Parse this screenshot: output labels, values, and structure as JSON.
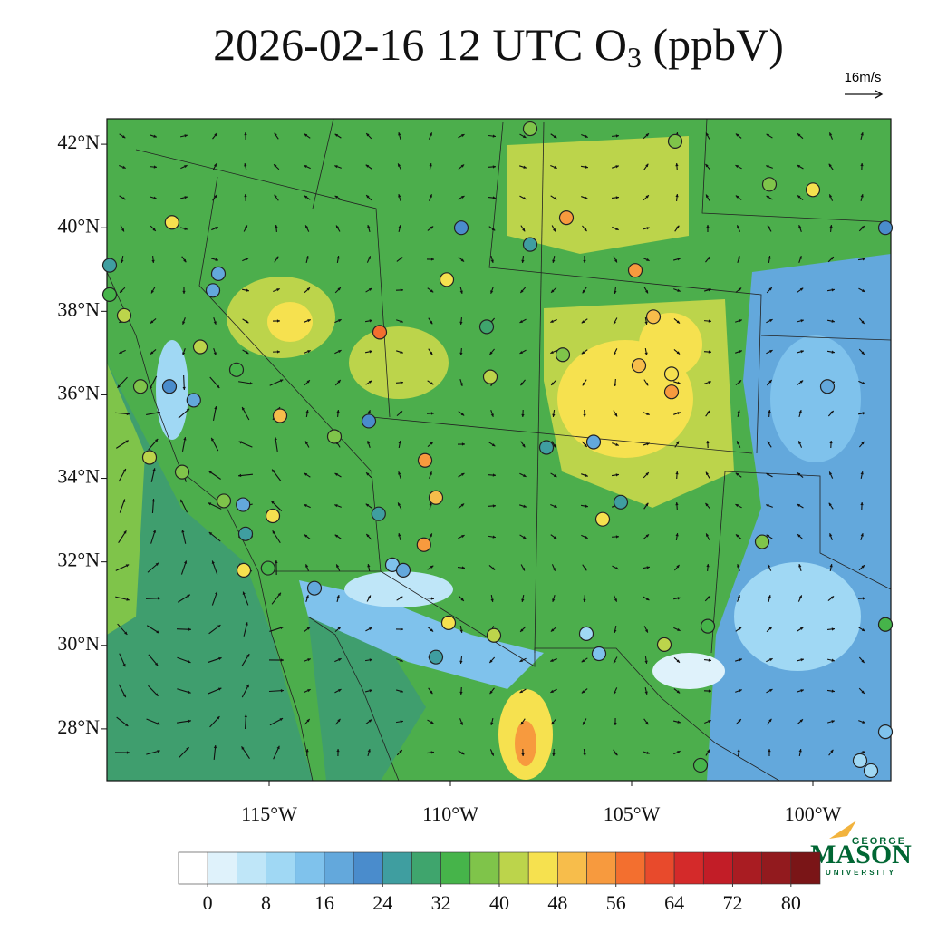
{
  "map": {
    "title": {
      "main": "2026-02-16 12 UTC O",
      "subscript": "3",
      "suffix": " (ppbV)"
    },
    "wind_scale": "16m/s",
    "lonlim": [
      -119.475,
      -97.85
    ],
    "latlim": [
      26.76,
      42.61
    ],
    "lon_ticks": [
      {
        "value": -115,
        "label": "115°W"
      },
      {
        "value": -110,
        "label": "110°W"
      },
      {
        "value": -105,
        "label": "105°W"
      },
      {
        "value": -100,
        "label": "100°W"
      }
    ],
    "lat_ticks": [
      {
        "value": 42,
        "label": "42°N"
      },
      {
        "value": 40,
        "label": "40°N"
      },
      {
        "value": 38,
        "label": "38°N"
      },
      {
        "value": 36,
        "label": "36°N"
      },
      {
        "value": 34,
        "label": "34°N"
      },
      {
        "value": 32,
        "label": "32°N"
      },
      {
        "value": 30,
        "label": "30°N"
      },
      {
        "value": 28,
        "label": "28°N"
      }
    ],
    "colorbar": {
      "lim": [
        -4,
        84
      ],
      "ticks": [
        0,
        8,
        16,
        24,
        32,
        40,
        48,
        56,
        64,
        72,
        80
      ],
      "colors": [
        "#ffffff",
        "#dff2fb",
        "#bfe6f8",
        "#a0d8f4",
        "#7fc2ec",
        "#63a8dc",
        "#4a8ccc",
        "#3f9ea0",
        "#3fa56d",
        "#46b44a",
        "#7fc44a",
        "#bcd44b",
        "#f6e14f",
        "#f7bd4b",
        "#f79a3e",
        "#f36f2f",
        "#e84a2c",
        "#d42a2a",
        "#c21d27",
        "#a91c22",
        "#921a1e",
        "#7a1517"
      ]
    },
    "stations": [
      [
        -117.68,
        40.13,
        46
      ],
      [
        -106.8,
        40.24,
        54
      ],
      [
        -100.0,
        40.91,
        46
      ],
      [
        -104.9,
        38.98,
        54
      ],
      [
        -111.95,
        37.5,
        56
      ],
      [
        -104.4,
        37.87,
        50
      ],
      [
        -114.7,
        35.5,
        50
      ],
      [
        -110.7,
        34.43,
        52
      ],
      [
        -110.4,
        33.54,
        50
      ],
      [
        -110.73,
        32.41,
        52
      ],
      [
        -110.05,
        30.54,
        46
      ],
      [
        -115.7,
        31.8,
        46
      ],
      [
        -114.9,
        33.1,
        45
      ],
      [
        -107.8,
        42.37,
        38
      ],
      [
        -103.8,
        42.07,
        36
      ],
      [
        -101.2,
        41.04,
        36
      ],
      [
        -98.0,
        40.0,
        20
      ],
      [
        -99.6,
        36.2,
        18
      ],
      [
        -101.4,
        32.48,
        38
      ],
      [
        -102.9,
        30.46,
        34
      ],
      [
        -104.1,
        30.02,
        42
      ],
      [
        -105.9,
        29.8,
        14
      ],
      [
        -106.25,
        30.28,
        8
      ],
      [
        -103.1,
        27.13,
        34
      ],
      [
        -98.7,
        27.24,
        10
      ],
      [
        -98.4,
        27.0,
        10
      ],
      [
        -98.0,
        27.93,
        12
      ],
      [
        -113.75,
        31.37,
        16
      ],
      [
        -111.6,
        31.93,
        12
      ],
      [
        -110.4,
        29.72,
        26
      ],
      [
        -108.8,
        30.24,
        40
      ],
      [
        -105.8,
        33.02,
        44
      ],
      [
        -105.3,
        33.43,
        26
      ],
      [
        -106.05,
        34.87,
        18
      ],
      [
        -107.35,
        34.74,
        26
      ],
      [
        -108.9,
        36.43,
        42
      ],
      [
        -104.8,
        36.7,
        50
      ],
      [
        -103.9,
        36.5,
        44
      ],
      [
        -103.9,
        36.07,
        52
      ],
      [
        -107.8,
        39.6,
        26
      ],
      [
        -109.7,
        40.0,
        20
      ],
      [
        -110.1,
        38.76,
        46
      ],
      [
        -109.0,
        37.63,
        28
      ],
      [
        -113.2,
        35.0,
        38
      ],
      [
        -112.25,
        35.37,
        20
      ],
      [
        -119.4,
        39.1,
        26
      ],
      [
        -116.4,
        38.9,
        18
      ],
      [
        -116.55,
        38.5,
        16
      ],
      [
        -119.0,
        37.9,
        42
      ],
      [
        -116.9,
        37.15,
        40
      ],
      [
        -115.9,
        36.6,
        34
      ],
      [
        -118.3,
        34.5,
        42
      ],
      [
        -117.4,
        34.15,
        38
      ],
      [
        -116.25,
        33.46,
        36
      ],
      [
        -115.72,
        33.37,
        18
      ],
      [
        -115.65,
        32.67,
        24
      ],
      [
        -115.03,
        31.85,
        34
      ],
      [
        -119.4,
        38.4,
        34
      ],
      [
        -118.55,
        36.2,
        36
      ],
      [
        -117.75,
        36.2,
        20
      ],
      [
        -117.08,
        35.87,
        16
      ],
      [
        -106.9,
        36.96,
        36
      ],
      [
        -98.0,
        30.5,
        32
      ],
      [
        -111.98,
        33.15,
        26
      ],
      [
        -111.3,
        31.8,
        18
      ]
    ]
  }
}
